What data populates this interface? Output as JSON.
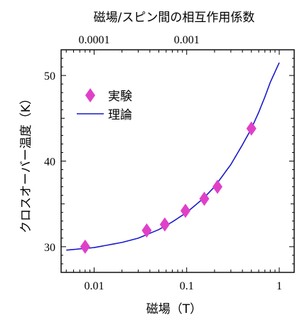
{
  "chart_data": {
    "type": "scatter",
    "x_scale": "log",
    "xlabel": "磁場（T）",
    "ylabel": "クロスオーバー温度（K）",
    "top_axis_label": "磁場/スピン間の相互作用係数",
    "x_ticks": [
      0.01,
      0.1,
      1
    ],
    "x_tick_labels": [
      "0.01",
      "0.1",
      "1"
    ],
    "top_ticks": [
      0.0001,
      0.001
    ],
    "top_tick_labels": [
      "0.0001",
      "0.001"
    ],
    "y_ticks": [
      30,
      40,
      50
    ],
    "y_tick_labels": [
      "30",
      "40",
      "50"
    ],
    "xlim": [
      0.0044,
      1.45
    ],
    "ylim": [
      27.0,
      53.0
    ],
    "legend": {
      "position": "top-left",
      "entries": [
        "実験",
        "理論"
      ]
    },
    "series": [
      {
        "name": "実験",
        "kind": "points",
        "marker": "diamond",
        "color": "#e040c8",
        "x": [
          0.008,
          0.037,
          0.058,
          0.097,
          0.155,
          0.215,
          0.5
        ],
        "y": [
          30.0,
          31.9,
          32.6,
          34.2,
          35.6,
          37.0,
          43.8
        ]
      },
      {
        "name": "理論",
        "kind": "line",
        "color": "#1a1acc",
        "x": [
          0.005,
          0.008,
          0.01,
          0.02,
          0.03,
          0.05,
          0.07,
          0.1,
          0.15,
          0.2,
          0.3,
          0.4,
          0.5,
          0.6,
          0.7,
          0.8,
          1.0
        ],
        "y": [
          29.6,
          29.8,
          29.9,
          30.5,
          31.0,
          32.0,
          32.9,
          34.0,
          35.6,
          37.0,
          39.6,
          41.9,
          43.8,
          45.7,
          47.5,
          49.2,
          51.5
        ]
      }
    ]
  }
}
